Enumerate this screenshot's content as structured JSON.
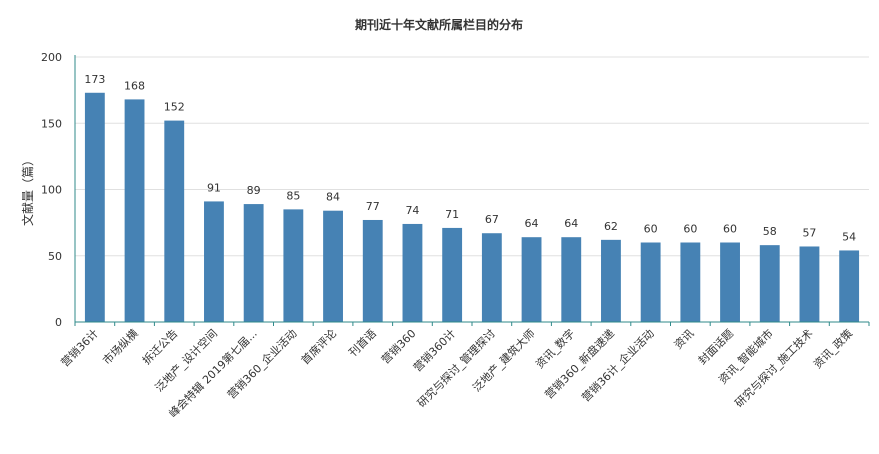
{
  "chart_data": {
    "type": "bar",
    "title": "期刊近十年文献所属栏目的分布",
    "ylabel": "文献量（篇）",
    "xlabel": "",
    "ylim": [
      0,
      200
    ],
    "yticks": [
      0,
      50,
      100,
      150,
      200
    ],
    "grid": true,
    "categories": [
      "营销36计",
      "市场纵横",
      "拆迁公告",
      "泛地产_设计空间",
      "峰会特辑 2019第七届...",
      "营销360_企业活动",
      "首席评论",
      "刊首语",
      "营销360",
      "营销360计",
      "研究与探讨_管理探讨",
      "泛地产_建筑大师",
      "资讯_数字",
      "营销360_新盘速递",
      "营销36计_企业活动",
      "资讯",
      "封面话题",
      "资讯_智能城市",
      "研究与探讨_施工技术",
      "资讯_政策"
    ],
    "values": [
      173,
      168,
      152,
      91,
      89,
      85,
      84,
      77,
      74,
      71,
      67,
      64,
      64,
      62,
      60,
      60,
      60,
      58,
      57,
      54
    ],
    "colors": {
      "bar": "#4682b4",
      "axis": "#2f8a8a",
      "grid": "#e0e0e0"
    }
  }
}
